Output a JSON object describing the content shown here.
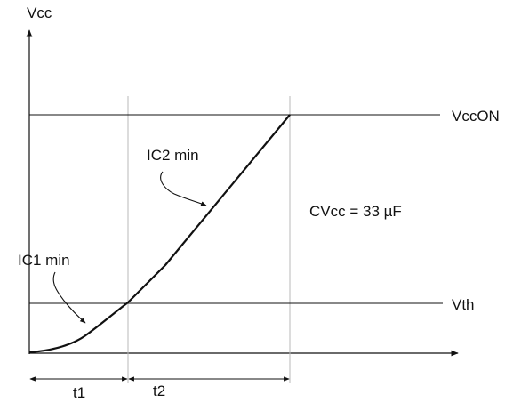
{
  "axes": {
    "y_label": "Vcc"
  },
  "levels": {
    "vcc_on_label": "VccON",
    "vth_label": "Vth"
  },
  "curve": {
    "ic1_label": "IC1 min",
    "ic2_label": "IC2 min"
  },
  "annotation": {
    "capacitance": "CVcc = 33 µF"
  },
  "intervals": {
    "t1_label": "t1",
    "t2_label": "t2"
  },
  "colors": {
    "line": "#111111",
    "guide": "#b8b8b8"
  }
}
